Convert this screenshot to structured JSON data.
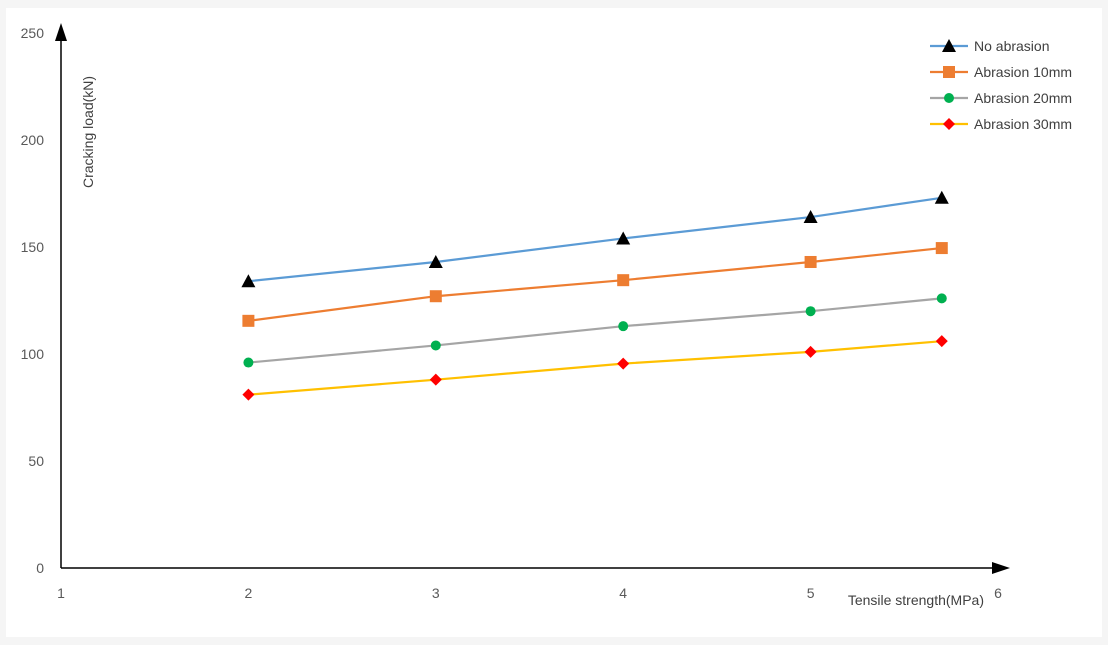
{
  "chart_data": {
    "type": "line",
    "title": "",
    "xlabel": "Tensile strength(MPa)",
    "ylabel": "Cracking load(kN)",
    "xlim": [
      1,
      6
    ],
    "ylim": [
      0,
      250
    ],
    "x_ticks": [
      "1",
      "2",
      "3",
      "4",
      "5",
      "6"
    ],
    "y_ticks": [
      "0",
      "50",
      "100",
      "150",
      "200",
      "250"
    ],
    "grid": false,
    "legend_position": "top-right",
    "x": [
      2,
      3,
      4,
      5,
      5.7
    ],
    "series": [
      {
        "name": "No abrasion",
        "values": [
          134,
          143,
          154,
          164,
          173
        ],
        "line_color": "#5B9BD5",
        "marker": "triangle",
        "marker_color": "#000000"
      },
      {
        "name": "Abrasion 10mm",
        "values": [
          115.5,
          127,
          134.5,
          143,
          149.5
        ],
        "line_color": "#ED7D31",
        "marker": "square",
        "marker_color": "#ED7D31"
      },
      {
        "name": "Abrasion 20mm",
        "values": [
          96,
          104,
          113,
          120,
          126
        ],
        "line_color": "#A5A5A5",
        "marker": "circle",
        "marker_color": "#00B050"
      },
      {
        "name": "Abrasion 30mm",
        "values": [
          81,
          88,
          95.5,
          101,
          106
        ],
        "line_color": "#FFC000",
        "marker": "diamond",
        "marker_color": "#FF0000"
      }
    ]
  }
}
